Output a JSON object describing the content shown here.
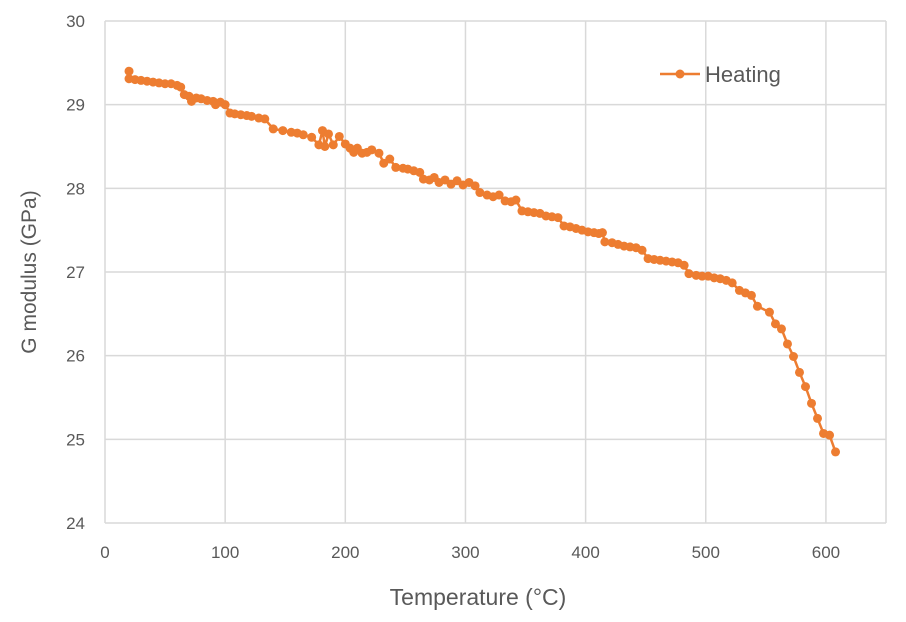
{
  "chart_data": {
    "type": "line",
    "title": "",
    "xlabel": "Temperature (°C)",
    "ylabel": "G modulus (GPa)",
    "xlim": [
      0,
      650
    ],
    "ylim": [
      24,
      30
    ],
    "xticks": [
      0,
      100,
      200,
      300,
      400,
      500,
      600
    ],
    "yticks": [
      24,
      25,
      26,
      27,
      28,
      29,
      30
    ],
    "grid": true,
    "legend_position": "top-right",
    "series": [
      {
        "name": "Heating",
        "color": "#ED7D31",
        "marker": "circle",
        "x": [
          20,
          20,
          25,
          30,
          35,
          40,
          45,
          50,
          55,
          60,
          63,
          66,
          70,
          72,
          76,
          80,
          85,
          90,
          92,
          96,
          100,
          104,
          108,
          113,
          118,
          122,
          128,
          133,
          140,
          148,
          155,
          160,
          165,
          172,
          178,
          181,
          183,
          186,
          190,
          195,
          200,
          204,
          207,
          210,
          214,
          218,
          222,
          228,
          232,
          237,
          242,
          248,
          252,
          257,
          262,
          265,
          270,
          274,
          278,
          283,
          288,
          293,
          298,
          303,
          308,
          312,
          318,
          323,
          328,
          333,
          338,
          342,
          347,
          352,
          357,
          362,
          367,
          372,
          377,
          382,
          387,
          392,
          397,
          402,
          407,
          411,
          414,
          416,
          422,
          427,
          432,
          437,
          442,
          447,
          452,
          457,
          462,
          467,
          472,
          477,
          482,
          486,
          492,
          497,
          502,
          507,
          512,
          517,
          522,
          528,
          533,
          538,
          543,
          553,
          558,
          563,
          568,
          573,
          578,
          583,
          588,
          593,
          598,
          603,
          608
        ],
        "y": [
          29.4,
          29.31,
          29.3,
          29.29,
          29.28,
          29.27,
          29.26,
          29.25,
          29.25,
          29.23,
          29.21,
          29.12,
          29.1,
          29.04,
          29.08,
          29.07,
          29.05,
          29.04,
          29.0,
          29.03,
          29.0,
          28.9,
          28.89,
          28.88,
          28.87,
          28.86,
          28.84,
          28.83,
          28.71,
          28.69,
          28.67,
          28.66,
          28.64,
          28.61,
          28.52,
          28.69,
          28.5,
          28.65,
          28.52,
          28.62,
          28.53,
          28.48,
          28.43,
          28.48,
          28.42,
          28.43,
          28.46,
          28.42,
          28.3,
          28.35,
          28.25,
          28.24,
          28.23,
          28.21,
          28.19,
          28.11,
          28.1,
          28.13,
          28.07,
          28.1,
          28.05,
          28.09,
          28.04,
          28.07,
          28.03,
          27.95,
          27.92,
          27.9,
          27.92,
          27.85,
          27.84,
          27.86,
          27.73,
          27.72,
          27.71,
          27.7,
          27.67,
          27.66,
          27.65,
          27.55,
          27.54,
          27.52,
          27.5,
          27.48,
          27.47,
          27.46,
          27.47,
          27.36,
          27.35,
          27.33,
          27.31,
          27.3,
          27.29,
          27.26,
          27.16,
          27.15,
          27.14,
          27.13,
          27.12,
          27.11,
          27.08,
          26.98,
          26.96,
          26.95,
          26.95,
          26.93,
          26.92,
          26.9,
          26.87,
          26.78,
          26.75,
          26.72,
          26.59,
          26.52,
          26.38,
          26.32,
          26.14,
          25.99,
          25.8,
          25.63,
          25.43,
          25.25,
          25.07,
          25.05,
          24.85
        ]
      }
    ]
  }
}
